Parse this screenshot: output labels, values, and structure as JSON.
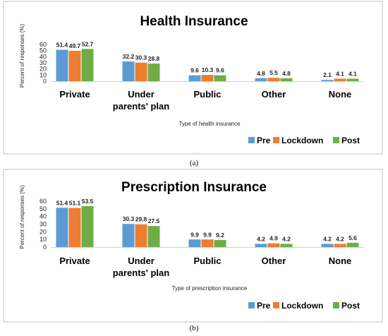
{
  "chart_data": [
    {
      "type": "bar",
      "title": "Health Insurance",
      "xlabel": "Type of health insurance",
      "ylabel": "Percent of responses (%)",
      "ylim": [
        0,
        60
      ],
      "yticks": [
        0,
        10,
        20,
        30,
        40,
        50,
        60
      ],
      "categories": [
        "Private",
        "Under parents' plan",
        "Public",
        "Other",
        "None"
      ],
      "category_lines": [
        [
          "Private"
        ],
        [
          "Under",
          "parents' plan"
        ],
        [
          "Public"
        ],
        [
          "Other"
        ],
        [
          "None"
        ]
      ],
      "series": [
        {
          "name": "Pre",
          "color": "#5b9bd5",
          "values": [
            51.4,
            32.2,
            9.6,
            4.8,
            2.1
          ]
        },
        {
          "name": "Lockdown",
          "color": "#ed7d31",
          "values": [
            49.7,
            30.3,
            10.3,
            5.5,
            4.1
          ]
        },
        {
          "name": "Post",
          "color": "#70ad47",
          "values": [
            52.7,
            28.8,
            9.6,
            4.8,
            4.1
          ]
        }
      ],
      "grid": false,
      "legend": "bottom-right",
      "caption": "(a)"
    },
    {
      "type": "bar",
      "title": "Prescription Insurance",
      "xlabel": "Type of prescription insurance",
      "ylabel": "Percent of responses (%)",
      "ylim": [
        0,
        60
      ],
      "yticks": [
        0,
        10,
        20,
        30,
        40,
        50,
        60
      ],
      "categories": [
        "Private",
        "Under parents' plan",
        "Public",
        "Other",
        "None"
      ],
      "category_lines": [
        [
          "Private"
        ],
        [
          "Under",
          "parents' plan"
        ],
        [
          "Public"
        ],
        [
          "Other"
        ],
        [
          "None"
        ]
      ],
      "series": [
        {
          "name": "Pre",
          "color": "#5b9bd5",
          "values": [
            51.4,
            30.3,
            9.9,
            4.2,
            4.2
          ]
        },
        {
          "name": "Lockdown",
          "color": "#ed7d31",
          "values": [
            51.1,
            29.8,
            9.9,
            4.9,
            4.2
          ]
        },
        {
          "name": "Post",
          "color": "#70ad47",
          "values": [
            53.5,
            27.5,
            9.2,
            4.2,
            5.6
          ]
        }
      ],
      "grid": false,
      "legend": "bottom-right",
      "caption": "(b)"
    }
  ]
}
